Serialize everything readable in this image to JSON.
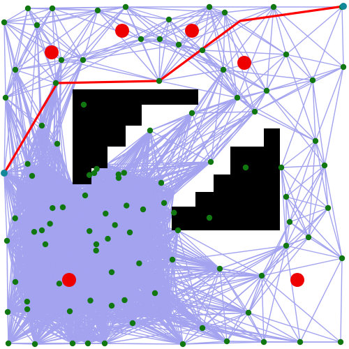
{
  "figure": {
    "kind": "probabilistic-roadmap",
    "background_color": "#ffffff",
    "obstacle_color": "#000000",
    "edge_color": "#a3a3f0",
    "path_color": "#ff0000",
    "node_color": "#117711",
    "endpoint_color": "#128899",
    "hazard_color": "#ee0000"
  },
  "legend": {}
}
